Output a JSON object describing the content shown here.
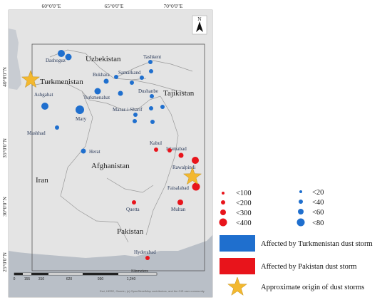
{
  "graticule": {
    "top": [
      "60°0'0\"E",
      "65°0'0\"E",
      "70°0'0\"E"
    ],
    "left": [
      "40°0'0\"N",
      "35°0'0\"N",
      "30°0'0\"N",
      "25°0'0\"N"
    ]
  },
  "north_label": "N",
  "countries": {
    "uzbekistan": "Uzbekistan",
    "turkmenistan": "Turkmenistan",
    "tajikistan": "Tajikistan",
    "afghanistan": "Afghanistan",
    "iran": "Iran",
    "pakistan": "Pakistan"
  },
  "cities": {
    "dashoguz": "Dashoguz",
    "tashkent": "Tashkent",
    "bukhara": "Bukhara",
    "samarkand": "Samarkand",
    "ashgabat": "Ashgabat",
    "turkmenabat": "Turkmenabat",
    "dushanbe": "Dushanbe",
    "mazar": "Mazar-i-Sharif",
    "mary": "Mary",
    "mashhad": "Mashhad",
    "herat": "Herat",
    "kabul": "Kabul",
    "islamabad": "Islamabad",
    "rawalpindi": "Rawalpindi",
    "faisalabad": "Faisalabad",
    "quetta": "Quetta",
    "multan": "Multan",
    "hyderabad": "Hyderabad"
  },
  "scale_bar": {
    "ticks": [
      "0",
      "155",
      "310",
      "620",
      "930",
      "1,240"
    ],
    "unit": "Kilometers"
  },
  "attribution": "Esri, HERE, Garmin, (c) OpenStreetMap contributors, and the GIS user community",
  "legend": {
    "red_sizes": [
      "<100",
      "<200",
      "<300",
      "<400"
    ],
    "blue_sizes": [
      "<20",
      "<40",
      "<60",
      "<80"
    ],
    "turkmenistan_label": "Affected by Turkmenistan dust storm",
    "pakistan_label": "Affected by Pakistan dust storm",
    "origin_label": "Approximate origin of dust storms"
  },
  "colors": {
    "blue": "#1f6fce",
    "red": "#e8141b",
    "star": "#f3b82f",
    "land": "#dedede",
    "water": "#b9bfc7"
  }
}
